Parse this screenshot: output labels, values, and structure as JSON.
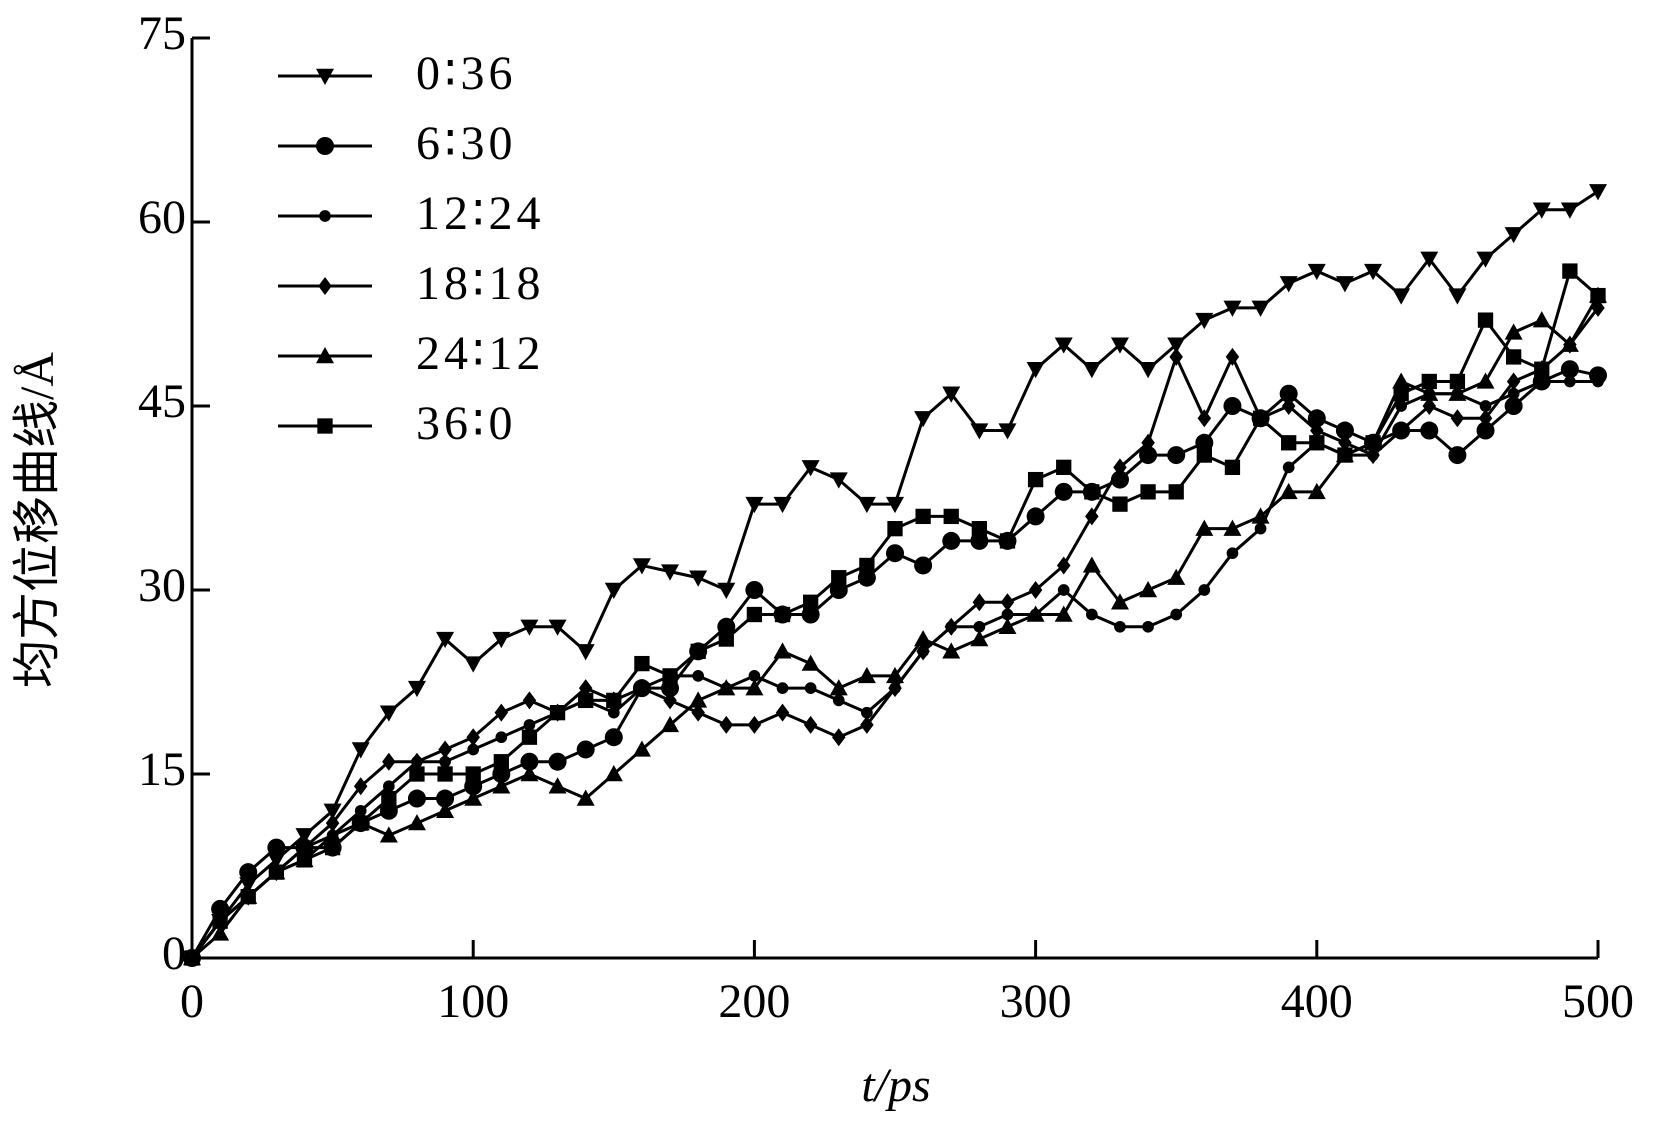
{
  "chart_data": {
    "type": "line",
    "x_label": "t/ps",
    "y_label": "均方位移曲线/Å",
    "x": [
      0,
      10,
      20,
      30,
      40,
      50,
      60,
      70,
      80,
      90,
      100,
      110,
      120,
      130,
      140,
      150,
      160,
      170,
      180,
      190,
      200,
      210,
      220,
      230,
      240,
      250,
      260,
      270,
      280,
      290,
      300,
      310,
      320,
      330,
      340,
      350,
      360,
      370,
      380,
      390,
      400,
      410,
      420,
      430,
      440,
      450,
      460,
      470,
      480,
      490,
      500
    ],
    "xlim": [
      0,
      500
    ],
    "xticks": [
      0,
      100,
      200,
      300,
      400,
      500
    ],
    "ylim": [
      0,
      75
    ],
    "yticks": [
      0,
      15,
      30,
      45,
      60,
      75
    ],
    "legend": "upper left",
    "series": [
      {
        "name": "0∶36",
        "color": "#000000",
        "marker": "triangle-down",
        "values": [
          0,
          3,
          6,
          8,
          10,
          12,
          17,
          20,
          22,
          26,
          24,
          26,
          27,
          27,
          25,
          30,
          32,
          31.5,
          31,
          30,
          37,
          37,
          40,
          39,
          37,
          37,
          44,
          46,
          43,
          43,
          48,
          50,
          48,
          50,
          48,
          50,
          52,
          53,
          53,
          55,
          56,
          55,
          56,
          54,
          57,
          54,
          57,
          59,
          61,
          61,
          62.5
        ]
      },
      {
        "name": "6∶30",
        "color": "#000000",
        "marker": "circle",
        "values": [
          0,
          4,
          7,
          9,
          9,
          9,
          11,
          12,
          13,
          13,
          14,
          15,
          16,
          16,
          17,
          18,
          22,
          22,
          25,
          27,
          30,
          28,
          28,
          30,
          31,
          33,
          32,
          34,
          34,
          34,
          36,
          38,
          38,
          39,
          41,
          41,
          42,
          45,
          44,
          46,
          44,
          43,
          42,
          43,
          43,
          41,
          43,
          45,
          47,
          48,
          47.5
        ]
      },
      {
        "name": "12∶24",
        "color": "#000000",
        "marker": "small-circle",
        "values": [
          0,
          3,
          5,
          7,
          9,
          10,
          12,
          14,
          16,
          16,
          17,
          18,
          19,
          20,
          21,
          20,
          22,
          23,
          23,
          22,
          23,
          22,
          22,
          21,
          20,
          22,
          25,
          27,
          27,
          28,
          28,
          30,
          28,
          27,
          27,
          28,
          30,
          33,
          35,
          40,
          42,
          41,
          41,
          45,
          46,
          46,
          45,
          46,
          47,
          47,
          47
        ]
      },
      {
        "name": "18∶18",
        "color": "#000000",
        "marker": "diamond",
        "values": [
          0,
          3,
          5,
          7,
          9,
          11,
          14,
          16,
          16,
          17,
          18,
          20,
          21,
          20,
          22,
          21,
          22,
          21,
          20,
          19,
          19,
          20,
          19,
          18,
          19,
          22,
          25,
          27,
          29,
          29,
          30,
          32,
          36,
          40,
          42,
          49,
          44,
          49,
          44,
          45,
          43,
          42,
          41,
          43,
          45,
          44,
          44,
          47,
          48,
          50,
          53
        ]
      },
      {
        "name": "24∶12",
        "color": "#000000",
        "marker": "triangle-up",
        "values": [
          0,
          2,
          5,
          7,
          8,
          10,
          11,
          10,
          11,
          12,
          13,
          14,
          15,
          14,
          13,
          15,
          17,
          19,
          21,
          22,
          22,
          25,
          24,
          22,
          23,
          23,
          26,
          25,
          26,
          27,
          28,
          28,
          32,
          29,
          30,
          31,
          35,
          35,
          36,
          38,
          38,
          41,
          42,
          47,
          46,
          46,
          47,
          51,
          52,
          50,
          54
        ]
      },
      {
        "name": "36∶0",
        "color": "#000000",
        "marker": "square",
        "values": [
          0,
          3,
          5,
          7,
          8,
          9,
          11,
          13,
          15,
          15,
          15,
          16,
          18,
          20,
          21,
          21,
          24,
          23,
          25,
          26,
          28,
          28,
          29,
          31,
          32,
          35,
          36,
          36,
          35,
          34,
          39,
          40,
          38,
          37,
          38,
          38,
          41,
          40,
          44,
          42,
          42,
          41,
          42,
          46,
          47,
          47,
          52,
          49,
          48,
          56,
          54
        ]
      }
    ]
  }
}
